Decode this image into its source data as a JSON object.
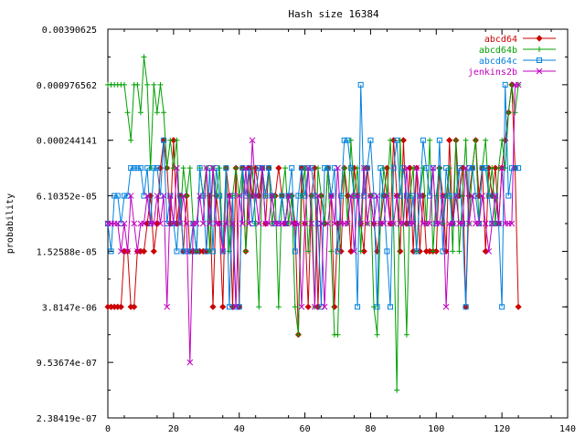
{
  "chart_data": {
    "type": "line",
    "title": "Hash size 16384",
    "xlabel": "",
    "ylabel": "probability",
    "xlim": [
      0,
      140
    ],
    "y_scale": "log2",
    "ylim": [
      2.38419e-07,
      0.00390625
    ],
    "x_ticks": [
      "0",
      "20",
      "40",
      "60",
      "80",
      "100",
      "120",
      "140"
    ],
    "y_ticks": [
      "2.38419e-07",
      "9.53674e-07",
      "3.8147e-06",
      "1.52588e-05",
      "6.10352e-05",
      "0.000244141",
      "0.000976562",
      "0.00390625"
    ],
    "legend_position": "top-right",
    "series": [
      {
        "name": "abcd64",
        "color": "#cc0000",
        "marker": "diamond",
        "x": [
          0,
          1,
          2,
          3,
          4,
          5,
          6,
          7,
          8,
          9,
          10,
          11,
          12,
          13,
          14,
          15,
          16,
          17,
          18,
          19,
          20,
          21,
          22,
          23,
          24,
          25,
          26,
          27,
          28,
          29,
          30,
          31,
          32,
          33,
          34,
          35,
          36,
          37,
          38,
          39,
          40,
          41,
          42,
          43,
          44,
          45,
          46,
          47,
          48,
          49,
          50,
          51,
          52,
          53,
          54,
          55,
          56,
          57,
          58,
          59,
          60,
          61,
          62,
          63,
          64,
          65,
          66,
          67,
          68,
          69,
          70,
          71,
          72,
          73,
          74,
          75,
          76,
          77,
          78,
          79,
          80,
          81,
          82,
          83,
          84,
          85,
          86,
          87,
          88,
          89,
          90,
          91,
          92,
          93,
          94,
          95,
          96,
          97,
          98,
          99,
          100,
          101,
          102,
          103,
          104,
          105,
          106,
          107,
          108,
          109,
          110,
          111,
          112,
          113,
          114,
          115,
          116,
          117,
          118,
          119,
          120,
          121,
          122,
          123,
          124,
          125
        ],
        "values": [
          3.8147e-06,
          3.8147e-06,
          3.8147e-06,
          3.8147e-06,
          3.8147e-06,
          1.52588e-05,
          1.52588e-05,
          3.8147e-06,
          3.8147e-06,
          1.52588e-05,
          1.52588e-05,
          1.52588e-05,
          3.05176e-05,
          6.10352e-05,
          1.52588e-05,
          3.05176e-05,
          0.00012207,
          0.000244141,
          0.00012207,
          3.05176e-05,
          0.000244141,
          3.05176e-05,
          6.10352e-05,
          1.52588e-05,
          6.10352e-05,
          1.52588e-05,
          1.52588e-05,
          1.52588e-05,
          1.52588e-05,
          1.52588e-05,
          1.52588e-05,
          6.10352e-05,
          3.8147e-06,
          6.10352e-05,
          3.05176e-05,
          3.8147e-06,
          0.00012207,
          6.10352e-05,
          3.8147e-06,
          0.00012207,
          3.8147e-06,
          0.00012207,
          1.52588e-05,
          0.00012207,
          6.10352e-05,
          0.00012207,
          6.10352e-05,
          0.00012207,
          3.05176e-05,
          0.00012207,
          6.10352e-05,
          6.10352e-05,
          0.00012207,
          6.10352e-05,
          3.05176e-05,
          6.10352e-05,
          6.10352e-05,
          3.05176e-05,
          1.90735e-06,
          0.00012207,
          3.05176e-05,
          3.8147e-06,
          6.10352e-05,
          0.00012207,
          3.8147e-06,
          6.10352e-05,
          3.05176e-05,
          0.00012207,
          6.10352e-05,
          3.8147e-06,
          3.05176e-05,
          1.52588e-05,
          0.00012207,
          6.10352e-05,
          1.52588e-05,
          0.00012207,
          6.10352e-05,
          3.05176e-05,
          1.52588e-05,
          0.00012207,
          6.10352e-05,
          3.05176e-05,
          1.52588e-05,
          3.05176e-05,
          6.10352e-05,
          0.00012207,
          3.05176e-05,
          0.000244141,
          6.10352e-05,
          1.52588e-05,
          0.000244141,
          3.05176e-05,
          0.00012207,
          1.52588e-05,
          0.00012207,
          1.52588e-05,
          6.10352e-05,
          1.52588e-05,
          1.52588e-05,
          1.52588e-05,
          1.52588e-05,
          0.00012207,
          6.10352e-05,
          1.52588e-05,
          0.000244141,
          3.05176e-05,
          0.000244141,
          6.10352e-05,
          0.00012207,
          3.8147e-06,
          6.10352e-05,
          0.00012207,
          0.000244141,
          6.10352e-05,
          0.00012207,
          1.52588e-05,
          0.00012207,
          6.10352e-05,
          0.00012207,
          3.05176e-05,
          0.00012207,
          0.000244141,
          0.000488281,
          0.000976562,
          0.00012207,
          3.8147e-06
        ]
      },
      {
        "name": "abcd64b",
        "color": "#00a000",
        "marker": "plus",
        "x": [
          0,
          1,
          2,
          3,
          4,
          5,
          6,
          7,
          8,
          9,
          10,
          11,
          12,
          13,
          14,
          15,
          16,
          17,
          18,
          19,
          20,
          21,
          22,
          23,
          24,
          25,
          26,
          27,
          28,
          29,
          30,
          31,
          32,
          33,
          34,
          35,
          36,
          37,
          38,
          39,
          40,
          41,
          42,
          43,
          44,
          45,
          46,
          47,
          48,
          49,
          50,
          51,
          52,
          53,
          54,
          55,
          56,
          57,
          58,
          59,
          60,
          61,
          62,
          63,
          64,
          65,
          66,
          67,
          68,
          69,
          70,
          71,
          72,
          73,
          74,
          75,
          76,
          77,
          78,
          79,
          80,
          81,
          82,
          83,
          84,
          85,
          86,
          87,
          88,
          89,
          90,
          91,
          92,
          93,
          94,
          95,
          96,
          97,
          98,
          99,
          100,
          101,
          102,
          103,
          104,
          105,
          106,
          107,
          108,
          109,
          110,
          111,
          112,
          113,
          114,
          115,
          116,
          117,
          118,
          119,
          120,
          121,
          122,
          123,
          124,
          125
        ],
        "values": [
          0.000976562,
          0.000976562,
          0.000976562,
          0.000976562,
          0.000976562,
          0.000976562,
          0.000488281,
          0.000244141,
          0.000976562,
          0.000976562,
          0.000488281,
          0.00195312,
          0.000976562,
          0.00012207,
          0.000976562,
          0.000488281,
          0.000976562,
          0.000488281,
          0.00012207,
          0.000244141,
          0.00012207,
          0.000244141,
          3.05176e-05,
          0.00012207,
          6.10352e-05,
          0.00012207,
          3.05176e-05,
          1.52588e-05,
          0.00012207,
          6.10352e-05,
          0.00012207,
          1.52588e-05,
          0.00012207,
          6.10352e-05,
          0.00012207,
          1.52588e-05,
          0.00012207,
          1.52588e-05,
          6.10352e-05,
          0.00012207,
          6.10352e-05,
          0.00012207,
          1.52588e-05,
          6.10352e-05,
          0.00012207,
          3.05176e-05,
          3.8147e-06,
          0.00012207,
          6.10352e-05,
          0.00012207,
          3.05176e-05,
          6.10352e-05,
          3.8147e-06,
          6.10352e-05,
          0.00012207,
          3.05176e-05,
          6.10352e-05,
          3.8147e-06,
          1.90735e-06,
          6.10352e-05,
          0.00012207,
          1.52588e-05,
          6.10352e-05,
          3.8147e-06,
          0.00012207,
          6.10352e-05,
          3.05176e-05,
          0.00012207,
          1.52588e-05,
          1.90735e-06,
          1.90735e-06,
          6.10352e-05,
          0.00012207,
          3.05176e-05,
          0.000244141,
          6.10352e-05,
          0.00012207,
          1.52588e-05,
          0.00012207,
          3.05176e-05,
          6.10352e-05,
          3.8147e-06,
          1.90735e-06,
          3.05176e-05,
          0.00012207,
          6.10352e-05,
          0.000244141,
          3.05176e-05,
          4.76837e-07,
          0.000244141,
          3.05176e-05,
          1.90735e-06,
          6.10352e-05,
          0.00012207,
          1.52588e-05,
          6.10352e-05,
          0.00012207,
          3.05176e-05,
          0.000244141,
          1.52588e-05,
          6.10352e-05,
          0.00012207,
          3.05176e-05,
          6.10352e-05,
          0.00012207,
          1.52588e-05,
          0.000244141,
          1.52588e-05,
          6.10352e-05,
          0.000244141,
          3.05176e-05,
          0.00012207,
          0.000244141,
          3.05176e-05,
          0.00012207,
          0.000244141,
          6.10352e-05,
          0.00012207,
          3.05176e-05,
          0.00012207,
          0.000244141,
          0.00012207,
          0.000488281,
          0.000976562,
          0.000488281,
          0.000976562
        ]
      },
      {
        "name": "abcd64c",
        "color": "#0080dd",
        "marker": "square",
        "x": [
          0,
          1,
          2,
          3,
          4,
          5,
          6,
          7,
          8,
          9,
          10,
          11,
          12,
          13,
          14,
          15,
          16,
          17,
          18,
          19,
          20,
          21,
          22,
          23,
          24,
          25,
          26,
          27,
          28,
          29,
          30,
          31,
          32,
          33,
          34,
          35,
          36,
          37,
          38,
          39,
          40,
          41,
          42,
          43,
          44,
          45,
          46,
          47,
          48,
          49,
          50,
          51,
          52,
          53,
          54,
          55,
          56,
          57,
          58,
          59,
          60,
          61,
          62,
          63,
          64,
          65,
          66,
          67,
          68,
          69,
          70,
          71,
          72,
          73,
          74,
          75,
          76,
          77,
          78,
          79,
          80,
          81,
          82,
          83,
          84,
          85,
          86,
          87,
          88,
          89,
          90,
          91,
          92,
          93,
          94,
          95,
          96,
          97,
          98,
          99,
          100,
          101,
          102,
          103,
          104,
          105,
          106,
          107,
          108,
          109,
          110,
          111,
          112,
          113,
          114,
          115,
          116,
          117,
          118,
          119,
          120,
          121,
          122,
          123,
          124,
          125
        ],
        "values": [
          3.05176e-05,
          1.52588e-05,
          6.10352e-05,
          6.10352e-05,
          3.05176e-05,
          6.10352e-05,
          6.10352e-05,
          0.00012207,
          0.00012207,
          0.00012207,
          0.00012207,
          6.10352e-05,
          0.00012207,
          3.05176e-05,
          0.00012207,
          0.00012207,
          6.10352e-05,
          0.000244141,
          3.05176e-05,
          6.10352e-05,
          3.05176e-05,
          1.52588e-05,
          6.10352e-05,
          1.52588e-05,
          1.52588e-05,
          1.52588e-05,
          3.05176e-05,
          1.52588e-05,
          0.00012207,
          6.10352e-05,
          1.52588e-05,
          0.00012207,
          1.52588e-05,
          0.00012207,
          6.10352e-05,
          1.52588e-05,
          0.00012207,
          3.8147e-06,
          6.10352e-05,
          3.8147e-06,
          3.8147e-06,
          0.00012207,
          6.10352e-05,
          0.00012207,
          3.05176e-05,
          6.10352e-05,
          0.00012207,
          0.00012207,
          6.10352e-05,
          0.00012207,
          6.10352e-05,
          3.05176e-05,
          3.05176e-05,
          6.10352e-05,
          3.05176e-05,
          6.10352e-05,
          0.00012207,
          1.52588e-05,
          6.10352e-05,
          0.00012207,
          6.10352e-05,
          0.00012207,
          0.00012207,
          6.10352e-05,
          3.05176e-05,
          3.8147e-06,
          0.00012207,
          0.00012207,
          6.10352e-05,
          0.00012207,
          1.52588e-05,
          6.10352e-05,
          0.000244141,
          0.000244141,
          0.00012207,
          6.10352e-05,
          3.8147e-06,
          0.000976562,
          6.10352e-05,
          0.00012207,
          0.000244141,
          6.10352e-05,
          3.8147e-06,
          0.00012207,
          6.10352e-05,
          1.52588e-05,
          3.8147e-06,
          0.00012207,
          0.000244141,
          6.10352e-05,
          0.00012207,
          6.10352e-05,
          3.05176e-05,
          6.10352e-05,
          1.52588e-05,
          6.10352e-05,
          0.000244141,
          0.00012207,
          6.10352e-05,
          0.00012207,
          3.05176e-05,
          0.000244141,
          1.52588e-05,
          0.00012207,
          6.10352e-05,
          3.05176e-05,
          6.10352e-05,
          0.00012207,
          3.05176e-05,
          3.8147e-06,
          0.00012207,
          0.00012207,
          6.10352e-05,
          3.05176e-05,
          0.00012207,
          0.00012207,
          6.10352e-05,
          3.05176e-05,
          6.10352e-05,
          3.05176e-05,
          3.8147e-06,
          0.000976562,
          6.10352e-05,
          0.00012207,
          0.00012207,
          0.00012207
        ]
      },
      {
        "name": "jenkins2b",
        "color": "#c000c0",
        "marker": "cross",
        "x": [
          0,
          1,
          2,
          3,
          4,
          5,
          6,
          7,
          8,
          9,
          10,
          11,
          12,
          13,
          14,
          15,
          16,
          17,
          18,
          19,
          20,
          21,
          22,
          23,
          24,
          25,
          26,
          27,
          28,
          29,
          30,
          31,
          32,
          33,
          34,
          35,
          36,
          37,
          38,
          39,
          40,
          41,
          42,
          43,
          44,
          45,
          46,
          47,
          48,
          49,
          50,
          51,
          52,
          53,
          54,
          55,
          56,
          57,
          58,
          59,
          60,
          61,
          62,
          63,
          64,
          65,
          66,
          67,
          68,
          69,
          70,
          71,
          72,
          73,
          74,
          75,
          76,
          77,
          78,
          79,
          80,
          81,
          82,
          83,
          84,
          85,
          86,
          87,
          88,
          89,
          90,
          91,
          92,
          93,
          94,
          95,
          96,
          97,
          98,
          99,
          100,
          101,
          102,
          103,
          104,
          105,
          106,
          107,
          108,
          109,
          110,
          111,
          112,
          113,
          114,
          115,
          116,
          117,
          118,
          119,
          120,
          121,
          122,
          123,
          124,
          125
        ],
        "values": [
          3.05176e-05,
          3.05176e-05,
          3.05176e-05,
          3.05176e-05,
          1.52588e-05,
          3.05176e-05,
          1.52588e-05,
          6.10352e-05,
          3.05176e-05,
          1.52588e-05,
          3.05176e-05,
          3.05176e-05,
          6.10352e-05,
          3.05176e-05,
          3.05176e-05,
          6.10352e-05,
          3.05176e-05,
          6.10352e-05,
          3.8147e-06,
          6.10352e-05,
          3.05176e-05,
          0.00012207,
          3.05176e-05,
          6.10352e-05,
          3.05176e-05,
          9.53674e-07,
          3.05176e-05,
          3.05176e-05,
          6.10352e-05,
          3.05176e-05,
          0.00012207,
          3.05176e-05,
          0.00012207,
          3.05176e-05,
          3.05176e-05,
          1.52588e-05,
          3.05176e-05,
          6.10352e-05,
          3.05176e-05,
          3.8147e-06,
          6.10352e-05,
          3.05176e-05,
          0.00012207,
          3.05176e-05,
          0.000244141,
          6.10352e-05,
          3.05176e-05,
          0.00012207,
          3.05176e-05,
          3.05176e-05,
          6.10352e-05,
          3.05176e-05,
          3.05176e-05,
          3.05176e-05,
          3.05176e-05,
          6.10352e-05,
          3.05176e-05,
          3.05176e-05,
          3.05176e-05,
          3.8147e-06,
          3.05176e-05,
          0.00012207,
          3.05176e-05,
          3.8147e-06,
          6.10352e-05,
          3.05176e-05,
          3.8147e-06,
          3.05176e-05,
          6.10352e-05,
          3.05176e-05,
          0.00012207,
          3.05176e-05,
          3.05176e-05,
          3.05176e-05,
          6.10352e-05,
          1.52588e-05,
          6.10352e-05,
          3.05176e-05,
          0.00012207,
          3.05176e-05,
          6.10352e-05,
          3.05176e-05,
          6.10352e-05,
          3.05176e-05,
          3.05176e-05,
          6.10352e-05,
          3.05176e-05,
          3.05176e-05,
          6.10352e-05,
          3.05176e-05,
          3.05176e-05,
          0.00012207,
          3.05176e-05,
          3.05176e-05,
          0.00012207,
          6.10352e-05,
          3.05176e-05,
          3.05176e-05,
          3.05176e-05,
          0.00012207,
          3.05176e-05,
          3.05176e-05,
          6.10352e-05,
          3.8147e-06,
          3.05176e-05,
          3.05176e-05,
          6.10352e-05,
          3.05176e-05,
          3.05176e-05,
          0.00012207,
          3.05176e-05,
          6.10352e-05,
          3.05176e-05,
          3.05176e-05,
          6.10352e-05,
          3.05176e-05,
          1.52588e-05,
          3.05176e-05,
          6.10352e-05,
          3.05176e-05,
          0.00012207,
          3.05176e-05,
          3.05176e-05,
          3.05176e-05,
          0.000976562,
          0.000976562
        ]
      }
    ]
  }
}
